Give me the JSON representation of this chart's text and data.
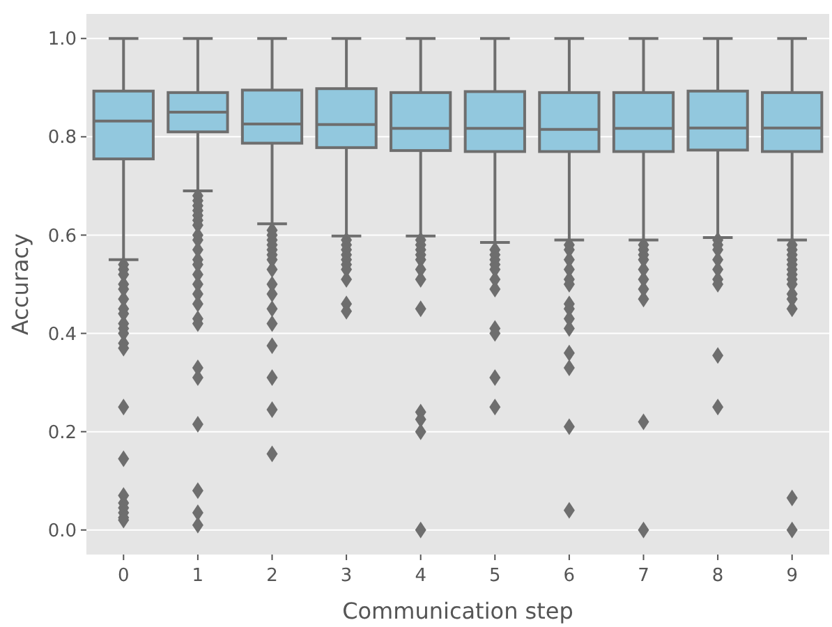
{
  "chart_data": {
    "type": "box",
    "xlabel": "Communication step",
    "ylabel": "Accuracy",
    "categories": [
      "0",
      "1",
      "2",
      "3",
      "4",
      "5",
      "6",
      "7",
      "8",
      "9"
    ],
    "color": "#92c8de",
    "grid": "y",
    "marker": "diamond",
    "ylim": [
      -0.05,
      1.05
    ],
    "yticks": [
      {
        "value": 0,
        "label": "0.0"
      },
      {
        "value": 0.2,
        "label": "0.2"
      },
      {
        "value": 0.4,
        "label": "0.4"
      },
      {
        "value": 0.6,
        "label": "0.6"
      },
      {
        "value": 0.8,
        "label": "0.8"
      },
      {
        "value": 1,
        "label": "1.0"
      }
    ],
    "boxes": [
      {
        "low": 0.55,
        "q1": 0.755,
        "median": 0.832,
        "q3": 0.893,
        "high": 1.0,
        "outliers": [
          0.54,
          0.53,
          0.52,
          0.5,
          0.49,
          0.47,
          0.45,
          0.44,
          0.42,
          0.41,
          0.4,
          0.38,
          0.37,
          0.25,
          0.145,
          0.07,
          0.055,
          0.045,
          0.035,
          0.025,
          0.02
        ]
      },
      {
        "low": 0.69,
        "q1": 0.81,
        "median": 0.85,
        "q3": 0.89,
        "high": 1.0,
        "outliers": [
          0.68,
          0.67,
          0.66,
          0.65,
          0.64,
          0.63,
          0.62,
          0.6,
          0.59,
          0.57,
          0.55,
          0.54,
          0.52,
          0.5,
          0.48,
          0.46,
          0.43,
          0.42,
          0.33,
          0.31,
          0.215,
          0.08,
          0.035,
          0.01
        ]
      },
      {
        "low": 0.623,
        "q1": 0.787,
        "median": 0.826,
        "q3": 0.895,
        "high": 1.0,
        "outliers": [
          0.61,
          0.6,
          0.59,
          0.58,
          0.57,
          0.56,
          0.55,
          0.53,
          0.5,
          0.48,
          0.45,
          0.42,
          0.375,
          0.31,
          0.245,
          0.155
        ]
      },
      {
        "low": 0.598,
        "q1": 0.778,
        "median": 0.825,
        "q3": 0.898,
        "high": 1.0,
        "outliers": [
          0.59,
          0.58,
          0.57,
          0.56,
          0.55,
          0.54,
          0.53,
          0.51,
          0.46,
          0.445
        ]
      },
      {
        "low": 0.598,
        "q1": 0.772,
        "median": 0.817,
        "q3": 0.89,
        "high": 1.0,
        "outliers": [
          0.59,
          0.58,
          0.57,
          0.56,
          0.55,
          0.53,
          0.51,
          0.45,
          0.24,
          0.225,
          0.2,
          0.0
        ]
      },
      {
        "low": 0.585,
        "q1": 0.77,
        "median": 0.817,
        "q3": 0.892,
        "high": 1.0,
        "outliers": [
          0.57,
          0.56,
          0.55,
          0.54,
          0.53,
          0.51,
          0.49,
          0.41,
          0.4,
          0.31,
          0.25
        ]
      },
      {
        "low": 0.59,
        "q1": 0.77,
        "median": 0.815,
        "q3": 0.89,
        "high": 1.0,
        "outliers": [
          0.58,
          0.57,
          0.55,
          0.53,
          0.51,
          0.5,
          0.46,
          0.45,
          0.43,
          0.41,
          0.36,
          0.33,
          0.21,
          0.04
        ]
      },
      {
        "low": 0.59,
        "q1": 0.77,
        "median": 0.817,
        "q3": 0.89,
        "high": 1.0,
        "outliers": [
          0.58,
          0.57,
          0.56,
          0.55,
          0.53,
          0.51,
          0.49,
          0.47,
          0.22,
          0.0
        ]
      },
      {
        "low": 0.595,
        "q1": 0.773,
        "median": 0.818,
        "q3": 0.893,
        "high": 1.0,
        "outliers": [
          0.59,
          0.58,
          0.57,
          0.55,
          0.53,
          0.51,
          0.5,
          0.355,
          0.25
        ]
      },
      {
        "low": 0.59,
        "q1": 0.77,
        "median": 0.818,
        "q3": 0.89,
        "high": 1.0,
        "outliers": [
          0.58,
          0.57,
          0.56,
          0.55,
          0.54,
          0.53,
          0.52,
          0.51,
          0.5,
          0.48,
          0.47,
          0.45,
          0.065,
          0.0
        ]
      }
    ]
  }
}
